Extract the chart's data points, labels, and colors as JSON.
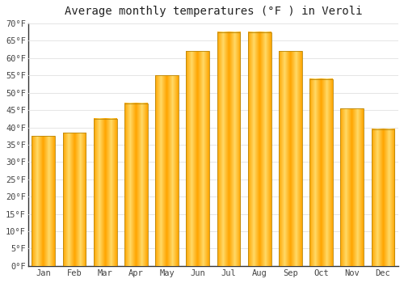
{
  "title": "Average monthly temperatures (°F ) in Veroli",
  "months": [
    "Jan",
    "Feb",
    "Mar",
    "Apr",
    "May",
    "Jun",
    "Jul",
    "Aug",
    "Sep",
    "Oct",
    "Nov",
    "Dec"
  ],
  "values": [
    37.5,
    38.5,
    42.5,
    47,
    55,
    62,
    67.5,
    67.5,
    62,
    54,
    45.5,
    39.5
  ],
  "bar_color_main": "#FFA500",
  "bar_color_light": "#FFD966",
  "bar_edge_color": "#B8860B",
  "ylim": [
    0,
    70
  ],
  "yticks": [
    0,
    5,
    10,
    15,
    20,
    25,
    30,
    35,
    40,
    45,
    50,
    55,
    60,
    65,
    70
  ],
  "ytick_labels": [
    "0°F",
    "5°F",
    "10°F",
    "15°F",
    "20°F",
    "25°F",
    "30°F",
    "35°F",
    "40°F",
    "45°F",
    "50°F",
    "55°F",
    "60°F",
    "65°F",
    "70°F"
  ],
  "background_color": "#FFFFFF",
  "grid_color": "#E0E0E0",
  "title_fontsize": 10,
  "tick_fontsize": 7.5,
  "bar_width": 0.75
}
